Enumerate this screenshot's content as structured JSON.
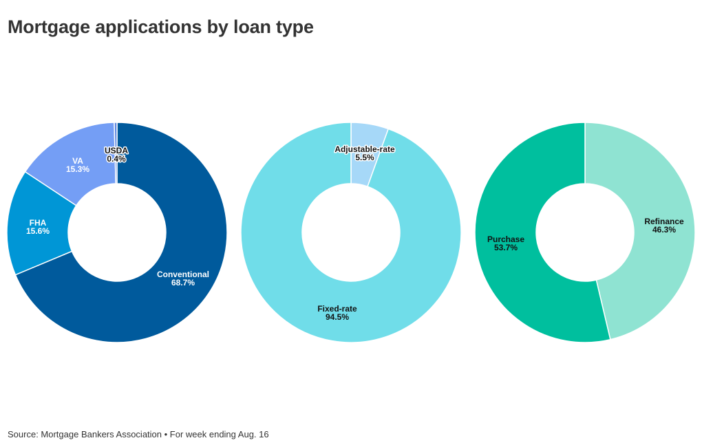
{
  "title": "Mortgage applications by loan type",
  "footer": "Source: Mortgage Bankers Association • For week ending Aug. 16",
  "chart_data": [
    {
      "type": "pie",
      "slices": [
        {
          "label": "Conventional",
          "value_label": "68.7%",
          "value": 68.7,
          "color": "#005a9c"
        },
        {
          "label": "FHA",
          "value_label": "15.6%",
          "value": 15.6,
          "color": "#0096d6"
        },
        {
          "label": "VA",
          "value_label": "15.3%",
          "value": 15.3,
          "color": "#749ef5"
        },
        {
          "label": "USDA",
          "value_label": "0.4%",
          "value": 0.4,
          "color": "#5f88e0"
        }
      ]
    },
    {
      "type": "pie",
      "slices": [
        {
          "label": "Adjustable-rate",
          "value_label": "5.5%",
          "value": 5.5,
          "color": "#a6d8f8"
        },
        {
          "label": "Fixed-rate",
          "value_label": "94.5%",
          "value": 94.5,
          "color": "#70dde9"
        }
      ]
    },
    {
      "type": "pie",
      "slices": [
        {
          "label": "Refinance",
          "value_label": "46.3%",
          "value": 46.3,
          "color": "#8fe3d2"
        },
        {
          "label": "Purchase",
          "value_label": "53.7%",
          "value": 53.7,
          "color": "#00bf9e"
        }
      ]
    }
  ]
}
